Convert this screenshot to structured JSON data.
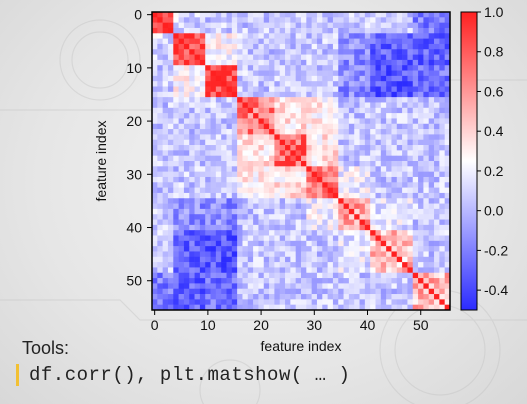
{
  "slide": {
    "tools_heading": "Tools:",
    "tools_code": "df.corr(), plt.matshow( … )"
  },
  "chart_data": {
    "type": "heatmap",
    "description": "",
    "xlabel": "feature index",
    "ylabel": "feature index",
    "x_ticks": [
      0,
      10,
      20,
      30,
      40,
      50
    ],
    "y_ticks": [
      0,
      10,
      20,
      30,
      40,
      50
    ],
    "n_features": 56,
    "colorbar": {
      "min": -0.5,
      "max": 1.0,
      "ticks": [
        1.0,
        0.8,
        0.6,
        0.4,
        0.2,
        0.0,
        -0.2,
        -0.4
      ],
      "tick_labels": [
        "1.0",
        "0.8",
        "0.6",
        "0.4",
        "0.2",
        "0.0",
        "-0.2",
        "-0.4"
      ],
      "colormap": "bwr",
      "low_color": "#2b2bff",
      "mid_color": "#ffffff",
      "high_color": "#ff2020"
    },
    "blocks": [
      {
        "start": 0,
        "end": 3,
        "intra": 0.85
      },
      {
        "start": 4,
        "end": 9,
        "intra": 0.9
      },
      {
        "start": 10,
        "end": 15,
        "intra": 0.9
      },
      {
        "start": 16,
        "end": 22,
        "intra": 0.7
      },
      {
        "start": 23,
        "end": 28,
        "intra": 0.75
      },
      {
        "start": 29,
        "end": 34,
        "intra": 0.75
      },
      {
        "start": 35,
        "end": 40,
        "intra": 0.6
      },
      {
        "start": 41,
        "end": 48,
        "intra": 0.45
      },
      {
        "start": 49,
        "end": 55,
        "intra": 0.5
      }
    ],
    "background_correlation": 0.05,
    "block_links": [
      {
        "a": 1,
        "b": 2,
        "value": 0.25
      },
      {
        "a": 3,
        "b": 4,
        "value": 0.35
      },
      {
        "a": 3,
        "b": 5,
        "value": 0.3
      },
      {
        "a": 4,
        "b": 5,
        "value": 0.35
      },
      {
        "a": 5,
        "b": 6,
        "value": 0.2
      },
      {
        "a": 6,
        "b": 7,
        "value": 0.15
      },
      {
        "a": 0,
        "b": 1,
        "value": 0.1
      },
      {
        "a": 1,
        "b": 7,
        "value": -0.3
      },
      {
        "a": 2,
        "b": 7,
        "value": -0.35
      },
      {
        "a": 1,
        "b": 8,
        "value": -0.3
      },
      {
        "a": 2,
        "b": 8,
        "value": -0.25
      },
      {
        "a": 0,
        "b": 8,
        "value": -0.2
      },
      {
        "a": 1,
        "b": 6,
        "value": -0.15
      },
      {
        "a": 2,
        "b": 6,
        "value": -0.15
      }
    ]
  }
}
